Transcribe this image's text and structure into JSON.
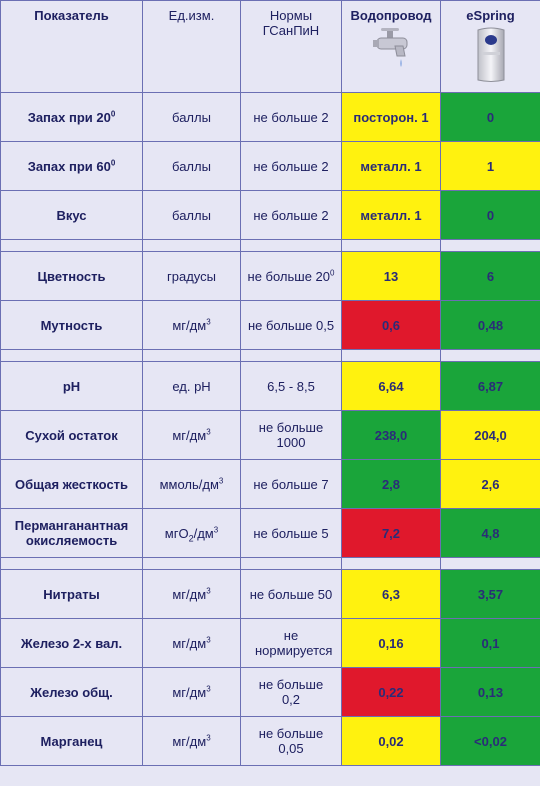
{
  "header": {
    "param": "Показатель",
    "unit": "Ед.изм.",
    "norm": "Нормы ГСанПиН",
    "tap": "Водопровод",
    "espring": "eSpring"
  },
  "rows": [
    {
      "name": "Запах при 20",
      "name_sup": "0",
      "unit": "баллы",
      "norm": "не больше 2",
      "tap": "посторон. 1",
      "espring": "0"
    },
    {
      "name": "Запах при 60",
      "name_sup": "0",
      "unit": "баллы",
      "norm": "не больше 2",
      "tap": "металл. 1",
      "espring": "1"
    },
    {
      "name": "Вкус",
      "unit": "баллы",
      "norm": "не больше 2",
      "tap": "металл. 1",
      "espring": "0"
    },
    {
      "name": "Цветность",
      "unit": "градусы",
      "norm": "не больше 20",
      "norm_sup": "0",
      "tap": "13",
      "espring": "6"
    },
    {
      "name": "Мутность",
      "unit": "мг/дм",
      "unit_sup": "3",
      "norm": "не больше 0,5",
      "tap": "0,6",
      "espring": "0,48"
    },
    {
      "name": "pH",
      "unit": "ед. pH",
      "norm": "6,5 - 8,5",
      "tap": "6,64",
      "espring": "6,87"
    },
    {
      "name": "Сухой остаток",
      "unit": "мг/дм",
      "unit_sup": "3",
      "norm": "не больше 1000",
      "tap": "238,0",
      "espring": "204,0"
    },
    {
      "name": "Общая жесткость",
      "unit": "ммоль/дм",
      "unit_sup": "3",
      "norm": "не больше 7",
      "tap": "2,8",
      "espring": "2,6"
    },
    {
      "name": "Перманганантная окисляемость",
      "unit_a": "мгО",
      "unit_sub": "2",
      "unit_b": "/дм",
      "unit_sup": "3",
      "norm": "не больше 5",
      "tap": "7,2",
      "espring": "4,8"
    },
    {
      "name": "Нитраты",
      "unit": "мг/дм",
      "unit_sup": "3",
      "norm": "не больше 50",
      "tap": "6,3",
      "espring": "3,57"
    },
    {
      "name": "Железо 2-х вал.",
      "unit": "мг/дм",
      "unit_sup": "3",
      "norm": "не нормируется",
      "tap": "0,16",
      "espring": "0,1"
    },
    {
      "name": "Железо общ.",
      "unit": "мг/дм",
      "unit_sup": "3",
      "norm": "не больше 0,2",
      "tap": "0,22",
      "espring": "0,13"
    },
    {
      "name": "Марганец",
      "unit": "мг/дм",
      "unit_sup": "3",
      "norm": "не больше 0,05",
      "tap": "0,02",
      "espring": "<0,02"
    }
  ],
  "colors": {
    "yellow": "#fff20f",
    "green": "#1aa53a",
    "red": "#e0182c",
    "background": "#e6e6f4",
    "border": "#6b6fb3",
    "text": "#1e2060"
  },
  "icons": {
    "tap": "water-faucet-icon",
    "espring": "espring-filter-device-icon"
  }
}
